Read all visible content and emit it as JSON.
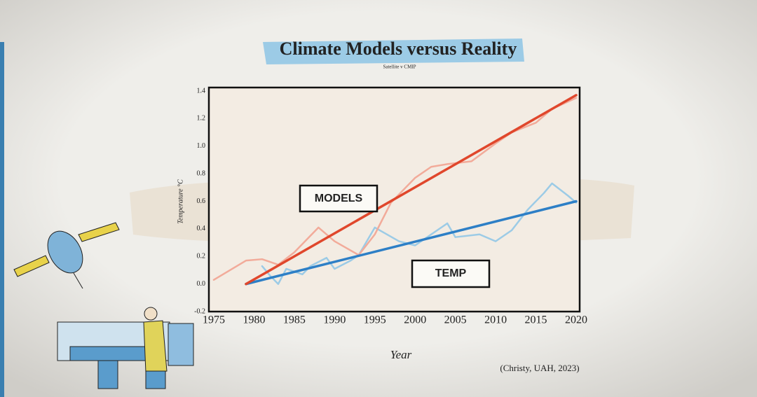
{
  "chart_data": {
    "type": "line",
    "title": "Climate Models versus Reality",
    "subtitle": "Satellite v CMIP",
    "x_label": "Year",
    "y_label": "Temperature °C",
    "source": "(Christy, UAH, 2023)",
    "xlim": [
      1975,
      2020
    ],
    "xticks": [
      1975,
      1980,
      1985,
      1990,
      1995,
      2000,
      2005,
      2010,
      2015,
      2020
    ],
    "ylim": [
      -0.2,
      1.4
    ],
    "yticks": [
      -0.2,
      {
        "value": 0,
        "label": "0.0"
      },
      0.2,
      0.4,
      0.6,
      0.8,
      {
        "value": 1,
        "label": "1.0"
      },
      1.2,
      1.4
    ],
    "series": [
      {
        "name": "MODELS",
        "color": "#e0472c",
        "x": [
          1979,
          2020
        ],
        "values": [
          0,
          1.37
        ]
      },
      {
        "name": "TEMP",
        "color": "#2d7fc6",
        "x": [
          1979,
          2020
        ],
        "values": [
          0,
          0.6
        ]
      },
      {
        "color": "#f2ab9a",
        "x": [
          1975,
          1977,
          1979,
          1981,
          1983,
          1985,
          1988,
          1990,
          1993,
          1995,
          1997,
          2000,
          2002,
          2004,
          2007,
          2010,
          2012,
          2015,
          2017,
          2020
        ],
        "values": [
          0.03,
          0.1,
          0.17,
          0.18,
          0.14,
          0.23,
          0.41,
          0.31,
          0.21,
          0.36,
          0.59,
          0.77,
          0.85,
          0.87,
          0.89,
          1.02,
          1.1,
          1.17,
          1.27,
          1.35
        ]
      },
      {
        "color": "#9ccbe6",
        "x": [
          1981,
          1982,
          1983,
          1984,
          1986,
          1987,
          1989,
          1990,
          1992,
          1993,
          1995,
          1998,
          2000,
          2002,
          2004,
          2005,
          2008,
          2010,
          2012,
          2014,
          2016,
          2017,
          2019,
          2020
        ],
        "values": [
          0.13,
          0.06,
          0.0,
          0.11,
          0.07,
          0.13,
          0.19,
          0.11,
          0.17,
          0.21,
          0.41,
          0.31,
          0.28,
          0.36,
          0.44,
          0.34,
          0.36,
          0.31,
          0.39,
          0.54,
          0.66,
          0.73,
          0.64,
          0.59
        ]
      }
    ]
  }
}
